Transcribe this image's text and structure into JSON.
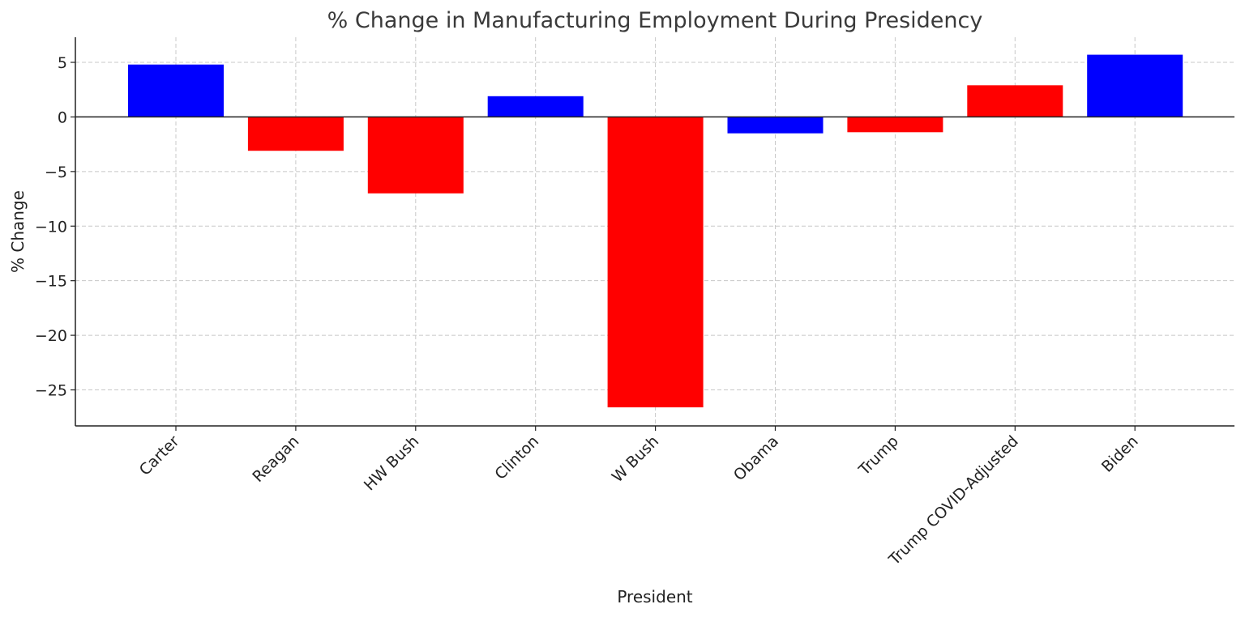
{
  "chart_data": {
    "type": "bar",
    "title": "% Change in Manufacturing Employment During Presidency",
    "xlabel": "President",
    "ylabel": "% Change",
    "categories": [
      "Carter",
      "Reagan",
      "HW Bush",
      "Clinton",
      "W Bush",
      "Obama",
      "Trump",
      "Trump COVID-Adjusted",
      "Biden"
    ],
    "values": [
      4.8,
      -3.1,
      -7.0,
      1.9,
      -26.6,
      -1.5,
      -1.4,
      2.9,
      5.7
    ],
    "bar_colors": [
      "#0000ff",
      "#ff0000",
      "#ff0000",
      "#0000ff",
      "#ff0000",
      "#0000ff",
      "#ff0000",
      "#ff0000",
      "#0000ff"
    ],
    "ylim": [
      -28.3,
      7.3
    ],
    "yticks": [
      5,
      0,
      -5,
      -10,
      -15,
      -20,
      -25
    ],
    "ytick_labels": [
      "5",
      "0",
      "−5",
      "−10",
      "−15",
      "−20",
      "−25"
    ],
    "grid": true,
    "legend": "none"
  }
}
